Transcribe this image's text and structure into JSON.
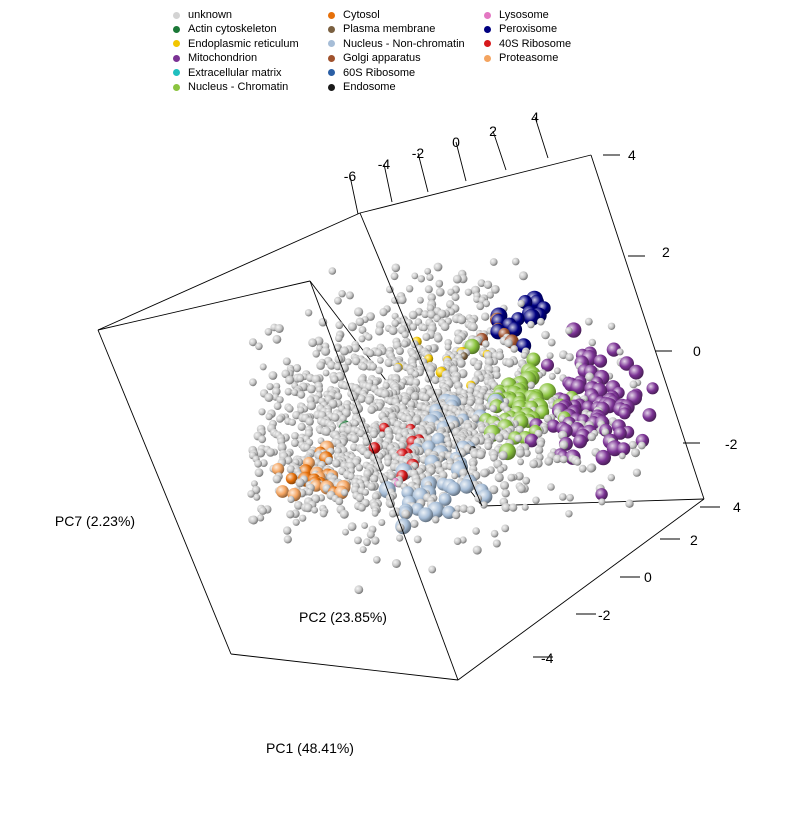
{
  "chart_data": {
    "type": "scatter",
    "subtype": "3d-scatter",
    "axes": {
      "x": {
        "label": "PC1 (48.41%)",
        "ticks": [
          "-6",
          "-4",
          "-2",
          "0",
          "2",
          "4"
        ]
      },
      "y": {
        "label": "PC2 (23.85%)",
        "ticks": [
          "4",
          "2",
          "0",
          "-2",
          "-4"
        ]
      },
      "z": {
        "label": "PC7 (2.23%)",
        "ticks": [
          "4",
          "2",
          "0",
          "-2"
        ]
      }
    },
    "legend": {
      "placement": "top",
      "entries": [
        {
          "label": "unknown",
          "color": "#d3d3d3"
        },
        {
          "label": "Actin cytoskeleton",
          "color": "#1b7837"
        },
        {
          "label": "Endoplasmic reticulum",
          "color": "#f2c600"
        },
        {
          "label": "Mitochondrion",
          "color": "#7b3294"
        },
        {
          "label": "Extracellular matrix",
          "color": "#1fbfbf"
        },
        {
          "label": "Nucleus - Chromatin",
          "color": "#8bc43f"
        },
        {
          "label": "Cytosol",
          "color": "#e6700a"
        },
        {
          "label": "Plasma membrane",
          "color": "#7a6040"
        },
        {
          "label": "Nucleus - Non-chromatin",
          "color": "#a6bdd7"
        },
        {
          "label": "Golgi apparatus",
          "color": "#a0522d"
        },
        {
          "label": "60S Ribosome",
          "color": "#2b5fa5"
        },
        {
          "label": "Endosome",
          "color": "#1a1a1a"
        },
        {
          "label": "Lysosome",
          "color": "#e377c2"
        },
        {
          "label": "Peroxisome",
          "color": "#000080"
        },
        {
          "label": "40S Ribosome",
          "color": "#d7191c"
        },
        {
          "label": "Proteasome",
          "color": "#f4a460"
        }
      ]
    },
    "clusters": [
      {
        "class": "unknown",
        "count": 1500
      },
      {
        "class": "Mitochondrion",
        "count": 90
      },
      {
        "class": "Nucleus - Chromatin",
        "count": 55
      },
      {
        "class": "Nucleus - Non-chromatin",
        "count": 45
      },
      {
        "class": "Peroxisome",
        "count": 14
      },
      {
        "class": "Cytosol",
        "count": 10
      },
      {
        "class": "Proteasome",
        "count": 12
      },
      {
        "class": "40S Ribosome",
        "count": 10
      },
      {
        "class": "Endoplasmic reticulum",
        "count": 8
      },
      {
        "class": "Golgi apparatus",
        "count": 5
      },
      {
        "class": "Plasma membrane",
        "count": 2
      },
      {
        "class": "Actin cytoskeleton",
        "count": 2
      },
      {
        "class": "Lysosome",
        "count": 2
      },
      {
        "class": "60S Ribosome",
        "count": 1
      },
      {
        "class": "Endosome",
        "count": 1
      }
    ],
    "grid": false
  }
}
